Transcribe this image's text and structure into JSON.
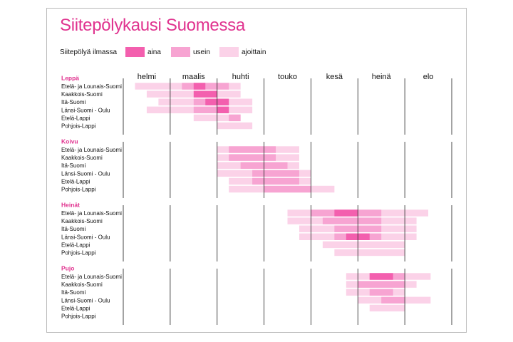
{
  "colors": {
    "title": "#e0338f",
    "group_title": "#e0338f",
    "aina": "#f35fae",
    "usein": "#f7a4d2",
    "ajoittain": "#fbd2e8",
    "grid": "#333333",
    "border": "#b9b9b9"
  },
  "chart_data": {
    "type": "bar",
    "title": "Siitepölykausi Suomessa",
    "legend": {
      "title": "Siitepölyä ilmassa",
      "placement": "top-left",
      "items": [
        {
          "key": "aina",
          "label": "aina"
        },
        {
          "key": "usein",
          "label": "usein"
        },
        {
          "key": "ajoittain",
          "label": "ajoittain"
        }
      ]
    },
    "months": [
      "helmi",
      "maalis",
      "huhti",
      "touko",
      "kesä",
      "heinä",
      "elo"
    ],
    "x_range_months": [
      1.5,
      8.5
    ],
    "groups": [
      {
        "name": "Leppä",
        "rows": [
          {
            "region": "Etelä- ja Lounais-Suomi",
            "ajoittain": [
              1.75,
              4.0
            ],
            "usein": [
              2.75,
              3.75
            ],
            "aina": [
              3.0,
              3.25
            ]
          },
          {
            "region": "Kaakkois-Suomi",
            "ajoittain": [
              2.0,
              4.0
            ],
            "usein": null,
            "aina": [
              3.0,
              3.5
            ]
          },
          {
            "region": "Itä-Suomi",
            "ajoittain": [
              2.25,
              4.25
            ],
            "usein": [
              3.0,
              3.75
            ],
            "aina": [
              3.25,
              3.75
            ]
          },
          {
            "region": "Länsi-Suomi - Oulu",
            "ajoittain": [
              2.0,
              4.25
            ],
            "usein": [
              3.0,
              3.75
            ],
            "aina": [
              3.5,
              3.75
            ]
          },
          {
            "region": "Etelä-Lappi",
            "ajoittain": [
              3.0,
              4.0
            ],
            "usein": [
              3.75,
              4.0
            ],
            "aina": null
          },
          {
            "region": "Pohjois-Lappi",
            "ajoittain": [
              3.5,
              4.25
            ],
            "usein": null,
            "aina": null
          }
        ]
      },
      {
        "name": "Koivu",
        "rows": [
          {
            "region": "Etelä- ja Lounais-Suomi",
            "ajoittain": [
              3.5,
              5.25
            ],
            "usein": [
              3.75,
              4.75
            ],
            "aina": null
          },
          {
            "region": "Kaakkois-Suomi",
            "ajoittain": [
              3.5,
              5.25
            ],
            "usein": [
              3.75,
              4.75
            ],
            "aina": null
          },
          {
            "region": "Itä-Suomi",
            "ajoittain": [
              3.5,
              5.25
            ],
            "usein": [
              4.0,
              5.0
            ],
            "aina": null
          },
          {
            "region": "Länsi-Suomi - Oulu",
            "ajoittain": [
              3.5,
              5.5
            ],
            "usein": [
              4.25,
              5.25
            ],
            "aina": null
          },
          {
            "region": "Etelä-Lappi",
            "ajoittain": [
              3.75,
              5.5
            ],
            "usein": [
              4.25,
              5.25
            ],
            "aina": null
          },
          {
            "region": "Pohjois-Lappi",
            "ajoittain": [
              3.75,
              6.0
            ],
            "usein": [
              4.5,
              5.5
            ],
            "aina": null
          }
        ]
      },
      {
        "name": "Heinät",
        "rows": [
          {
            "region": "Etelä- ja Lounais-Suomi",
            "ajoittain": [
              5.0,
              8.0
            ],
            "usein": [
              5.5,
              7.0
            ],
            "aina": [
              6.0,
              6.5
            ]
          },
          {
            "region": "Kaakkois-Suomi",
            "ajoittain": [
              5.0,
              7.75
            ],
            "usein": [
              5.75,
              7.0
            ],
            "aina": null
          },
          {
            "region": "Itä-Suomi",
            "ajoittain": [
              5.25,
              7.75
            ],
            "usein": [
              6.0,
              7.0
            ],
            "aina": null
          },
          {
            "region": "Länsi-Suomi - Oulu",
            "ajoittain": [
              5.25,
              7.75
            ],
            "usein": [
              6.0,
              7.0
            ],
            "aina": [
              6.25,
              6.75
            ]
          },
          {
            "region": "Etelä-Lappi",
            "ajoittain": [
              5.75,
              7.5
            ],
            "usein": null,
            "aina": null
          },
          {
            "region": "Pohjois-Lappi",
            "ajoittain": [
              6.0,
              7.5
            ],
            "usein": null,
            "aina": null
          }
        ]
      },
      {
        "name": "Pujo",
        "rows": [
          {
            "region": "Etelä- ja Lounais-Suomi",
            "ajoittain": [
              6.25,
              8.05
            ],
            "usein": [
              6.75,
              7.5
            ],
            "aina": [
              6.75,
              7.25
            ]
          },
          {
            "region": "Kaakkois-Suomi",
            "ajoittain": [
              6.25,
              7.75
            ],
            "usein": [
              6.5,
              7.5
            ],
            "aina": null
          },
          {
            "region": "Itä-Suomi",
            "ajoittain": [
              6.25,
              7.5
            ],
            "usein": [
              6.75,
              7.25
            ],
            "aina": null
          },
          {
            "region": "Länsi-Suomi - Oulu",
            "ajoittain": [
              6.5,
              8.05
            ],
            "usein": [
              7.0,
              7.5
            ],
            "aina": null
          },
          {
            "region": "Etelä-Lappi",
            "ajoittain": [
              6.75,
              7.5
            ],
            "usein": null,
            "aina": null
          },
          {
            "region": "Pohjois-Lappi",
            "ajoittain": null,
            "usein": null,
            "aina": null
          }
        ]
      }
    ]
  }
}
